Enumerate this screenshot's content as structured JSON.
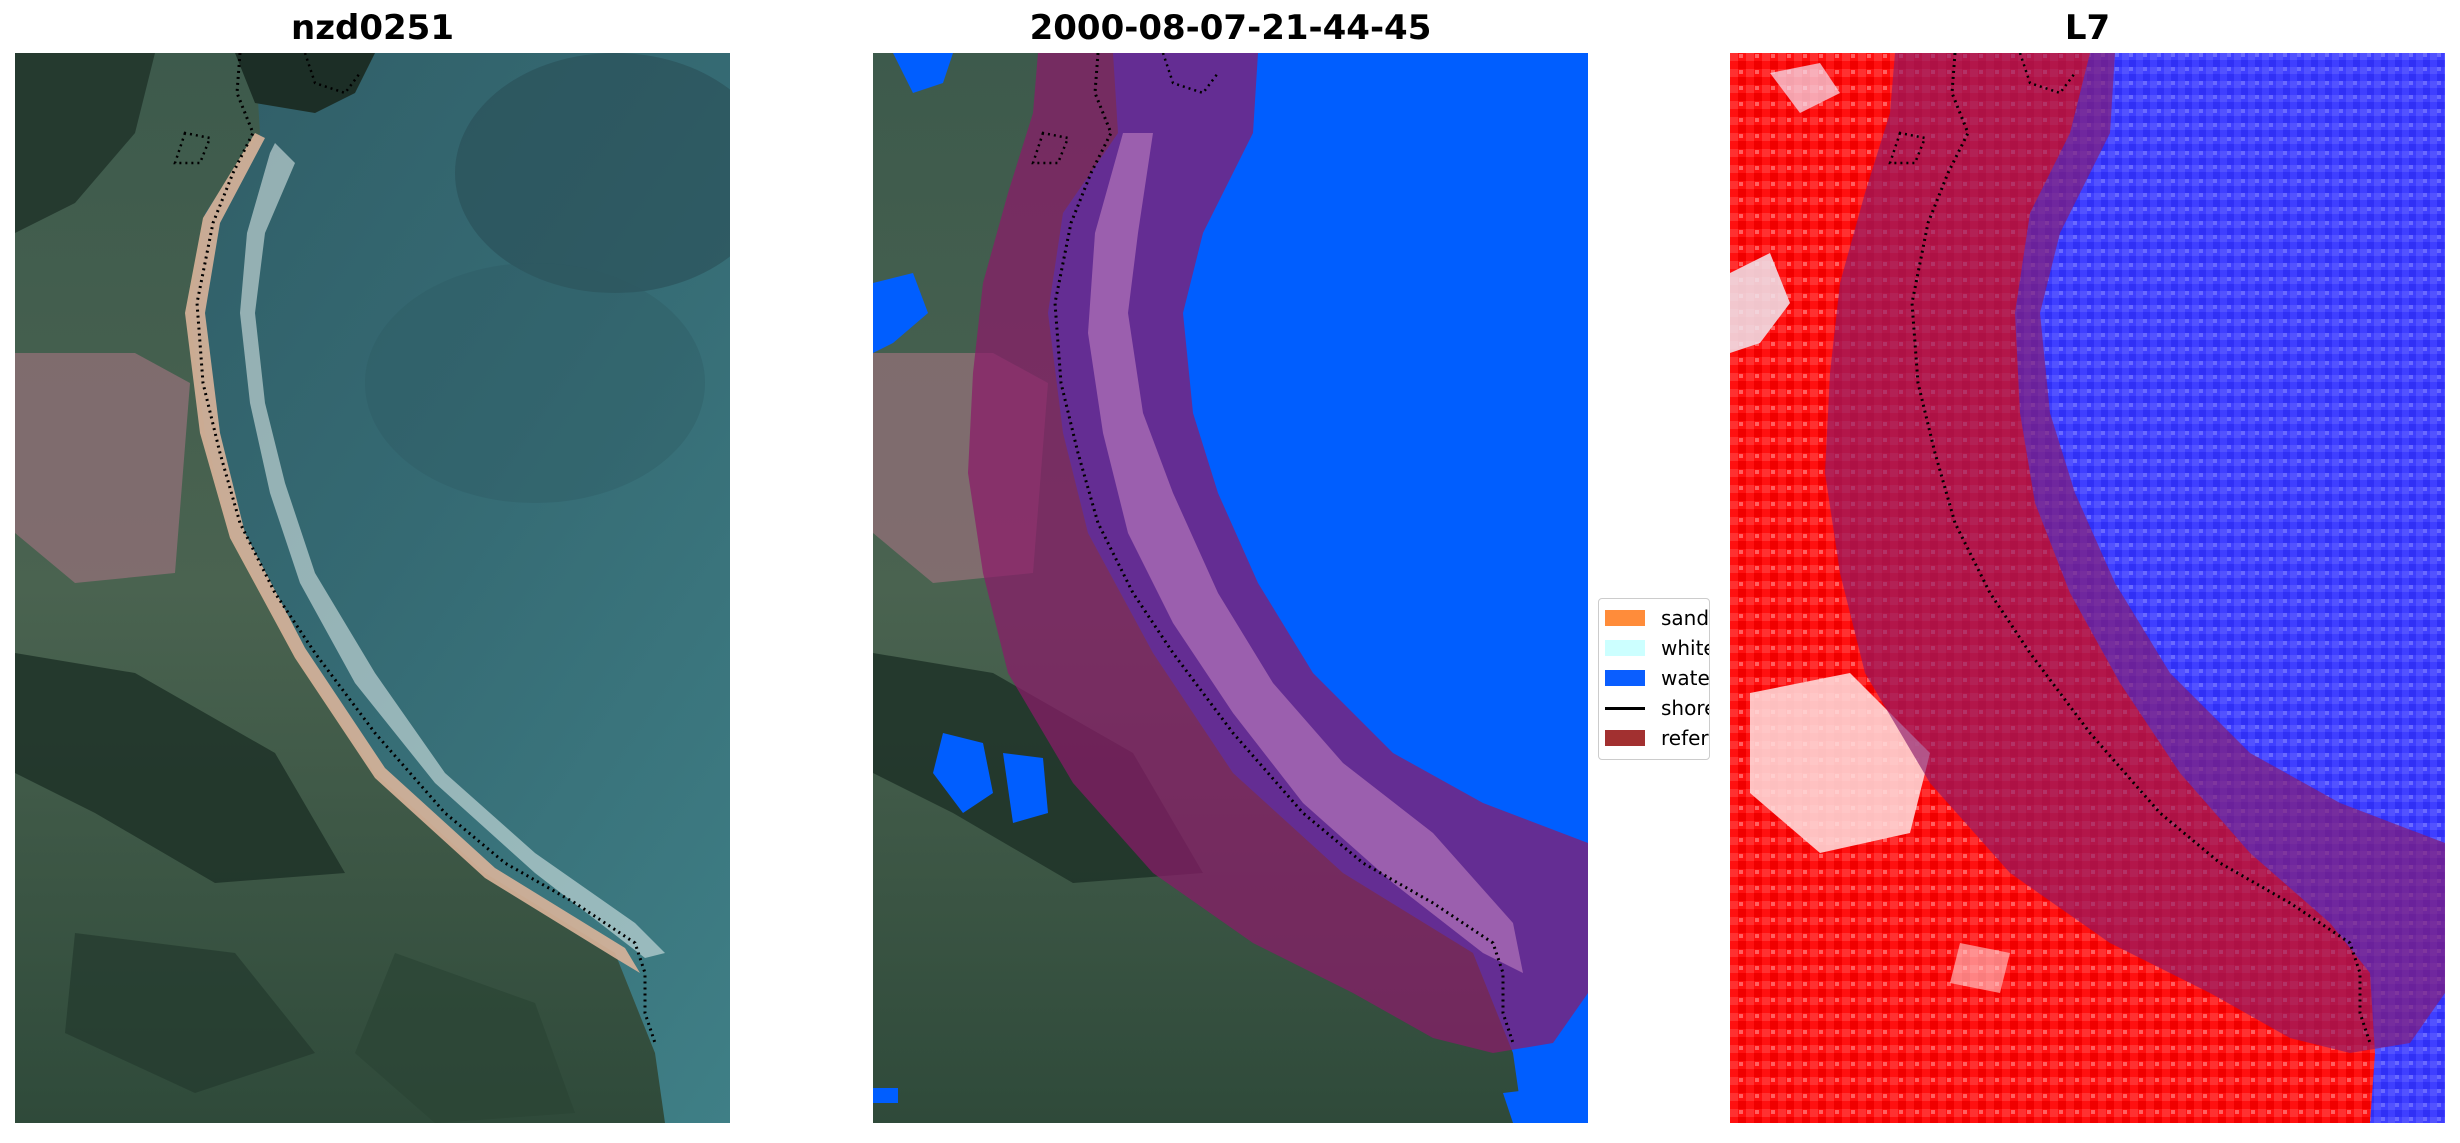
{
  "panels": [
    {
      "title": "nzd0251"
    },
    {
      "title": "2000-08-07-21-44-45"
    },
    {
      "title": "L7"
    }
  ],
  "legend": {
    "items": [
      {
        "label": "sand",
        "color": "#ff8c3a",
        "kind": "patch"
      },
      {
        "label": "whitew",
        "color": "#ccffff",
        "kind": "patch"
      },
      {
        "label": "water",
        "color": "#0a5eff",
        "kind": "patch"
      },
      {
        "label": "shorel",
        "color": "#000000",
        "kind": "line"
      },
      {
        "label": "referen",
        "color": "#a23030",
        "kind": "patch"
      }
    ]
  },
  "colors": {
    "water_class": "#005eff",
    "buffer_overlay": "#8b1a6a",
    "reference_shoreline": "#a23030",
    "index_positive": "#ff0000",
    "index_negative": "#3a3aff"
  }
}
